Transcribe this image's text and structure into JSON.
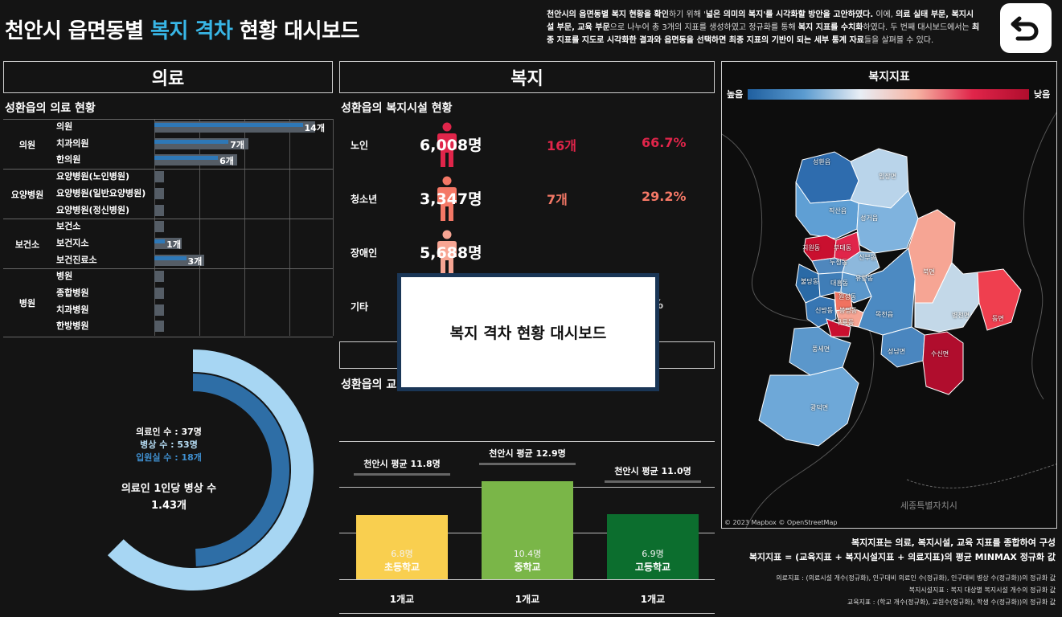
{
  "header": {
    "title_pre": "천안시 읍면동별 ",
    "title_hl": "복지 격차",
    "title_post": " 현황 대시보드",
    "desc_1": "천안시의 읍면동별 복지 현황을 확인",
    "desc_2": "하기 위해 '",
    "desc_3": "넓은 의미의 복지",
    "desc_4": "'를 시각화할 방안을 고안하였다.",
    "desc_5": " 이에, ",
    "desc_6": "의료 실태 부문, 복지시설 부문, 교육 부문",
    "desc_7": "으로 나누어 총 3개의 지표를 생성하였고 정규화를 통해 ",
    "desc_8": "복지 지표를 수치화",
    "desc_9": "하였다. 두 번째 대시보드에서는 ",
    "desc_10": "최종 지표를 지도로 시각화한 결과와 읍면동을 선택하면 최종 지표의 기반이 되는 세부 통계 자료",
    "desc_11": "들을 살펴볼 수 있다.",
    "back_icon": "undo-arrow-icon"
  },
  "medical": {
    "section": "의료",
    "subtitle": "성환읍의 의료 현황",
    "groups": [
      {
        "name": "의원",
        "items": [
          {
            "label": "의원",
            "value": 14,
            "text": "14개"
          },
          {
            "label": "치과의원",
            "value": 7,
            "text": "7개"
          },
          {
            "label": "한의원",
            "value": 6,
            "text": "6개"
          }
        ]
      },
      {
        "name": "요양병원",
        "items": [
          {
            "label": "요양병원(노인병원)",
            "value": 0,
            "text": ""
          },
          {
            "label": "요양병원(일반요양병원)",
            "value": 0,
            "text": ""
          },
          {
            "label": "요양병원(정신병원)",
            "value": 0,
            "text": ""
          }
        ]
      },
      {
        "name": "보건소",
        "items": [
          {
            "label": "보건소",
            "value": 0,
            "text": ""
          },
          {
            "label": "보건지소",
            "value": 1,
            "text": "1개"
          },
          {
            "label": "보건진료소",
            "value": 3,
            "text": "3개"
          }
        ]
      },
      {
        "name": "병원",
        "items": [
          {
            "label": "병원",
            "value": 0,
            "text": ""
          },
          {
            "label": "종합병원",
            "value": 0,
            "text": ""
          },
          {
            "label": "치과병원",
            "value": 0,
            "text": ""
          },
          {
            "label": "한방병원",
            "value": 0,
            "text": ""
          }
        ]
      }
    ],
    "donut": {
      "doctors": "의료인 수 : 37명",
      "beds": "병상 수 : 53명",
      "rooms": "입원실 수 :  18개",
      "per_title": "의료인 1인당 병상 수",
      "per_value": "1.43개",
      "ratio": 0.5
    }
  },
  "welfare": {
    "section": "복지",
    "subtitle": "성환읍의 복지시설 현황",
    "rows": [
      {
        "cat": "노인",
        "pop": "6,008명",
        "fac": "16개",
        "pct": "66.7%",
        "color": "#e0254a"
      },
      {
        "cat": "청소년",
        "pop": "3,347명",
        "fac": "7개",
        "pct": "29.2%",
        "color": "#f47866"
      },
      {
        "cat": "장애인",
        "pop": "5,688명",
        "fac": "",
        "pct": "",
        "color": "#f7a593"
      },
      {
        "cat": "기타",
        "pop": "",
        "fac": "",
        "pct": "2%",
        "color": "#cccccc"
      }
    ]
  },
  "education": {
    "subtitle": "성환읍의 교",
    "schools": [
      {
        "avg": "천안시 평균 11.8명",
        "value": 6.8,
        "val_text": "6.8명",
        "name": "초등학교",
        "count": "1개교",
        "color": "#f9cf4f"
      },
      {
        "avg": "천안시 평균 12.9명",
        "value": 10.4,
        "val_text": "10.4명",
        "name": "중학교",
        "count": "1개교",
        "color": "#7ab648"
      },
      {
        "avg": "천안시 평균 11.0명",
        "value": 6.9,
        "val_text": "6.9명",
        "name": "고등학교",
        "count": "1개교",
        "color": "#0c6e2e"
      }
    ]
  },
  "modal": {
    "text": "복지 격차 현황 대시보드"
  },
  "map": {
    "title": "복지지표",
    "legend_high": "높음",
    "legend_low": "낮음",
    "attribution": "© 2023 Mapbox © OpenStreetMap",
    "sejong": "세종특별자치시",
    "regions": [
      "성환읍",
      "입장면",
      "직산읍",
      "성거읍",
      "치원동",
      "부대동",
      "두정동",
      "신부동",
      "불당동",
      "대흥동",
      "유량동",
      "원성동",
      "신방동",
      "봉명동",
      "구룡동",
      "목천읍",
      "북면",
      "병천면",
      "동면",
      "풍세면",
      "성남면",
      "수신면",
      "광덕면"
    ]
  },
  "footer": {
    "line1": "복지지표는 의료, 복지시설, 교육 지표를 종합하여 구성",
    "line2": "복지지표 = (교육지표 + 복지시설지표 + 의료지표)의 평균 MINMAX 정규화 값",
    "line3": "의료지표 : (의료시설 개수(정규화), 인구대비 의료인 수(정규화), 인구대비 병상 수(정규화))의 정규화 값",
    "line4": "복지시설지표 : 복지 대상별 복지시설 개수의 정규화 값",
    "line5": "교육지표 : (학교 개수(정규화), 교원수(정규화), 학생 수(정규화))의 정규화 값"
  }
}
